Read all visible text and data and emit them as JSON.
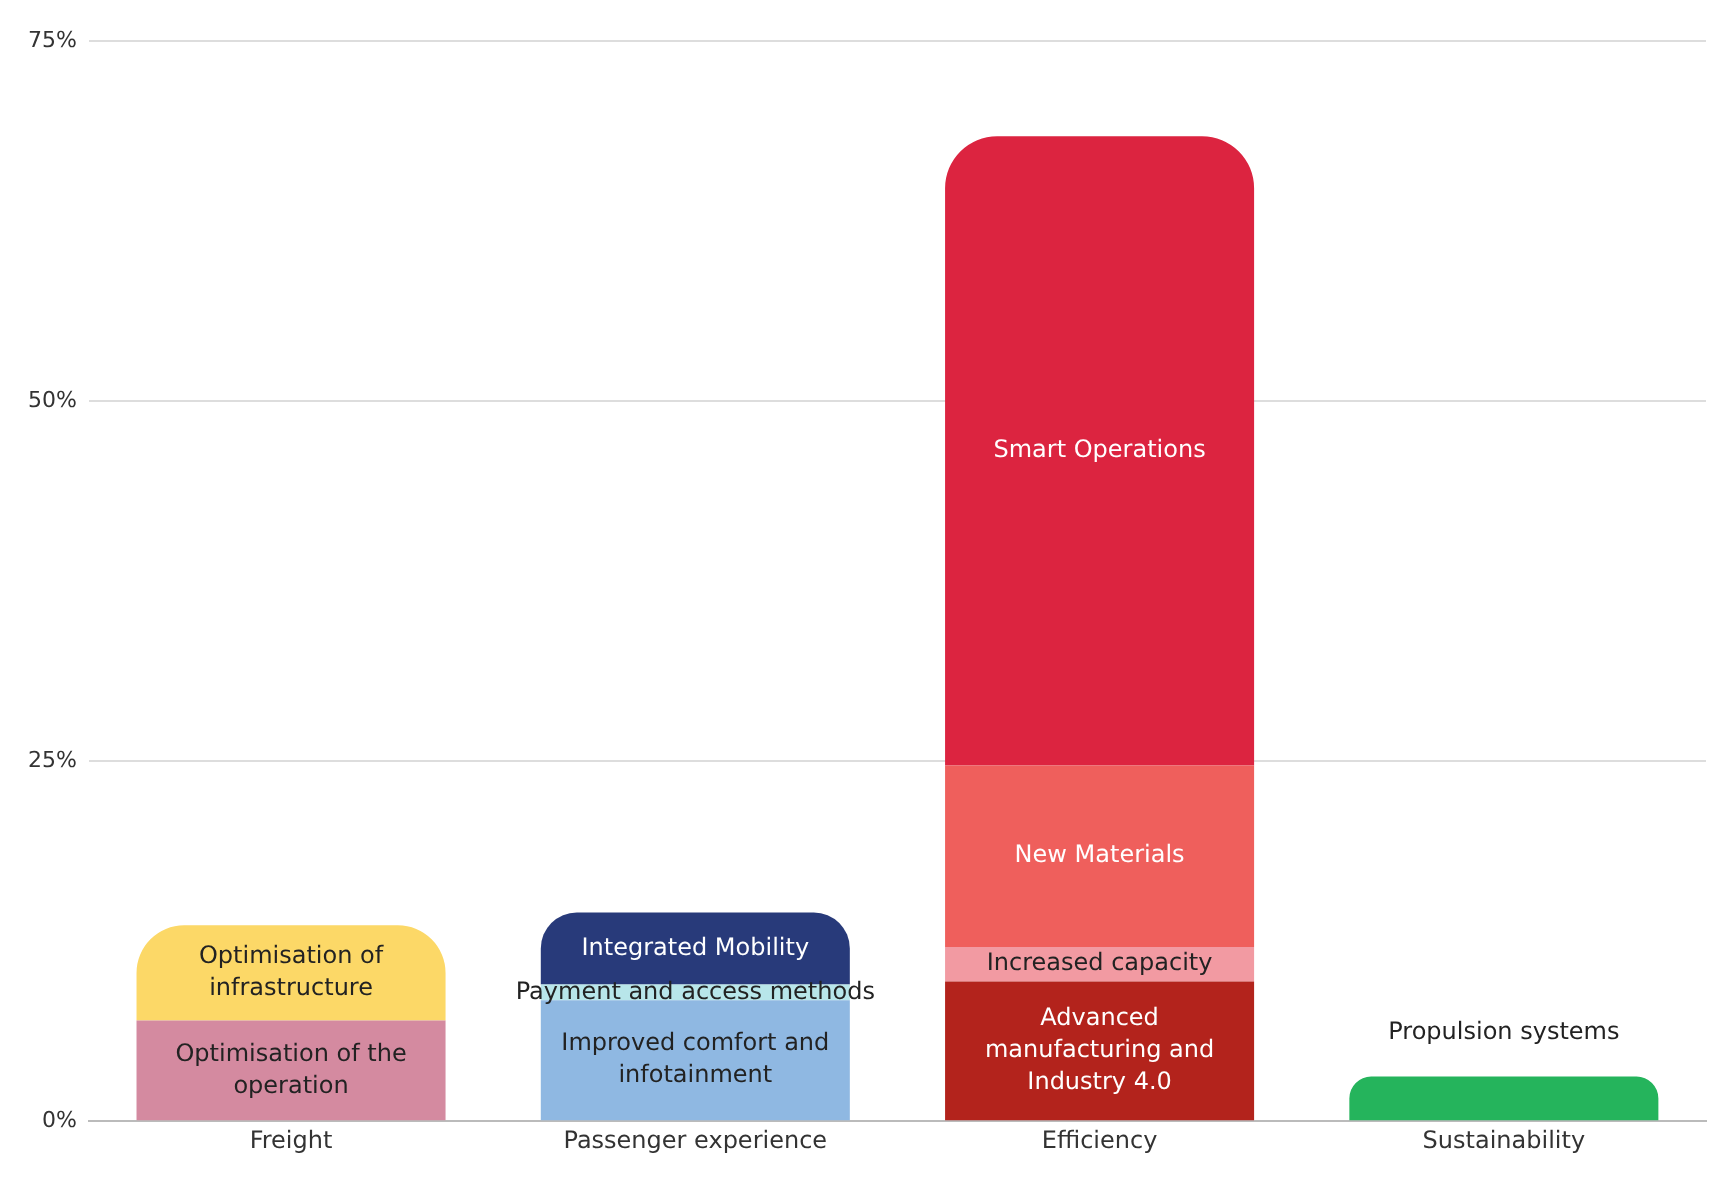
{
  "chart_data": {
    "type": "bar",
    "stacked": true,
    "categories": [
      "Freight",
      "Passenger experience",
      "Efficiency",
      "Sustainability"
    ],
    "ylim": [
      0,
      75
    ],
    "yticks": [
      {
        "value": 0,
        "label": "0%"
      },
      {
        "value": 25,
        "label": "25%"
      },
      {
        "value": 50,
        "label": "50%"
      },
      {
        "value": 75,
        "label": "75%"
      }
    ],
    "grid": "y",
    "legend": false,
    "series": [
      {
        "name": "Optimisation of the operation",
        "color": "#d48aa0",
        "values": [
          7.0,
          null,
          null,
          null
        ]
      },
      {
        "name": "Optimisation of infrastructure",
        "color": "#fcd867",
        "values": [
          6.6,
          null,
          null,
          null
        ]
      },
      {
        "name": "Improved comfort and infotainment",
        "color": "#8fb8e2",
        "values": [
          null,
          8.4,
          null,
          null
        ]
      },
      {
        "name": "Payment and access methods",
        "color": "#b8e6ea",
        "values": [
          null,
          1.1,
          null,
          null
        ]
      },
      {
        "name": "Integrated Mobility",
        "color": "#283a7a",
        "values": [
          null,
          5.0,
          null,
          null
        ]
      },
      {
        "name": "Advanced manufacturing and Industry 4.0",
        "color": "#b3231c",
        "values": [
          null,
          null,
          9.7,
          null
        ]
      },
      {
        "name": "Increased capacity",
        "color": "#f29aa2",
        "values": [
          null,
          null,
          2.4,
          null
        ]
      },
      {
        "name": "New Materials",
        "color": "#ef5f5c",
        "values": [
          null,
          null,
          12.6,
          null
        ]
      },
      {
        "name": "Smart Operations",
        "color": "#dc2440",
        "values": [
          null,
          null,
          43.7,
          null
        ]
      },
      {
        "name": "Propulsion systems",
        "color": "#25b45c",
        "values": [
          null,
          null,
          null,
          3.1
        ]
      }
    ]
  }
}
